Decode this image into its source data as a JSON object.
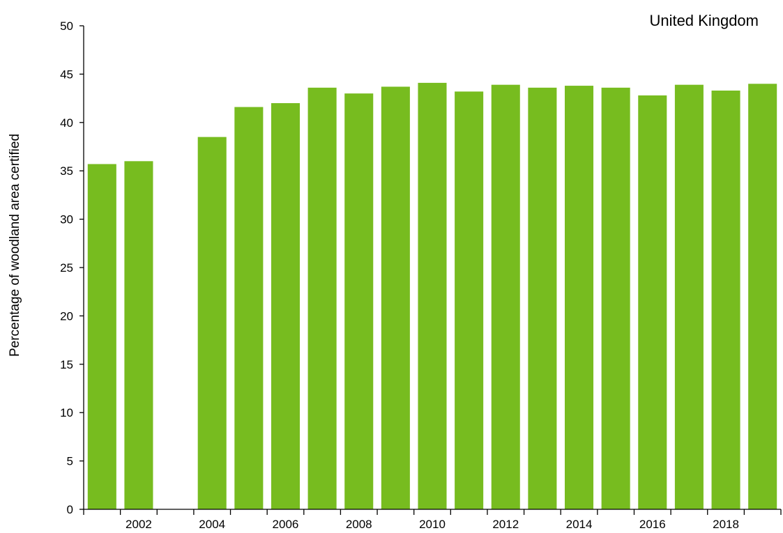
{
  "chart_data": {
    "type": "bar",
    "region_label": "United Kingdom",
    "xlabel": "",
    "ylabel": "Percentage of woodland area certified",
    "categories": [
      "2001",
      "2002",
      "2003",
      "2004",
      "2005",
      "2006",
      "2007",
      "2008",
      "2009",
      "2010",
      "2011",
      "2012",
      "2013",
      "2014",
      "2015",
      "2016",
      "2017",
      "2018",
      "2019"
    ],
    "x_tick_labels": [
      "2002",
      "2004",
      "2006",
      "2008",
      "2010",
      "2012",
      "2014",
      "2016",
      "2018"
    ],
    "values": [
      35.7,
      36.0,
      null,
      38.5,
      41.6,
      42.0,
      43.6,
      43.0,
      43.7,
      44.1,
      43.2,
      43.9,
      43.6,
      43.8,
      43.6,
      42.8,
      43.9,
      43.3,
      44.0
    ],
    "ylim": [
      0,
      50
    ],
    "y_ticks": [
      0,
      5,
      10,
      15,
      20,
      25,
      30,
      35,
      40,
      45,
      50
    ],
    "grid": false,
    "legend": "none",
    "bar_color": "#77bc1f"
  }
}
